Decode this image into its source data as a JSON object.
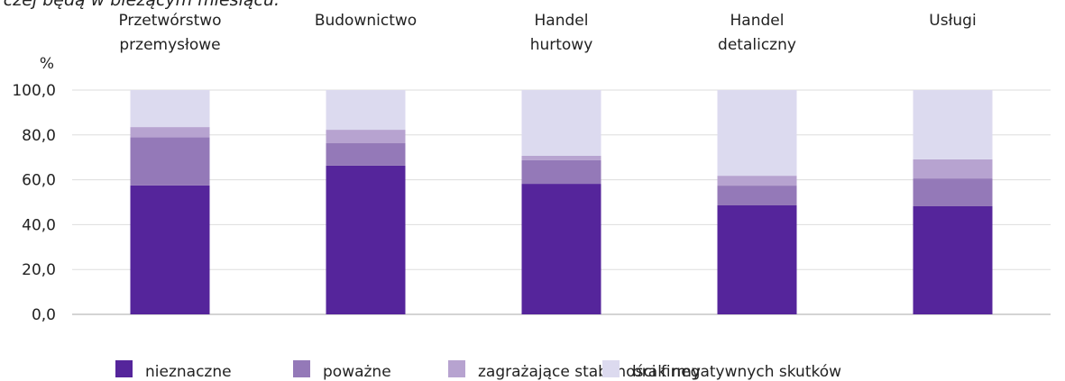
{
  "chart_data": {
    "type": "stacked_bar",
    "title": "rczej będą w bieżącym miesiącu.",
    "y_label": "%",
    "categories": [
      [
        "Przetwórstwo",
        "przemysłowe"
      ],
      [
        "Budownictwo"
      ],
      [
        "Handel",
        "hurtowy"
      ],
      [
        "Handel",
        "detaliczny"
      ],
      [
        "Usługi"
      ]
    ],
    "series": [
      {
        "name": "nieznaczne",
        "color": "#55259b",
        "values": [
          57.5,
          66.3,
          58.2,
          48.6,
          48.2
        ]
      },
      {
        "name": "poważne",
        "color": "#9479b8",
        "values": [
          21.5,
          10.0,
          10.5,
          8.8,
          12.4
        ]
      },
      {
        "name": "zagrażające stabilności firmy",
        "color": "#b7a3d0",
        "values": [
          4.5,
          6.0,
          2.0,
          4.4,
          8.5
        ]
      },
      {
        "name": "brak negatywnych skutków",
        "color": "#dcdaef",
        "values": [
          16.5,
          17.7,
          29.3,
          38.2,
          30.9
        ]
      }
    ],
    "ylim": [
      0,
      100
    ],
    "yticks": [
      {
        "value": 0,
        "label": "0,0"
      },
      {
        "value": 20,
        "label": "20,0"
      },
      {
        "value": 40,
        "label": "40,0"
      },
      {
        "value": 60,
        "label": "60,0"
      },
      {
        "value": 80,
        "label": "80,0"
      },
      {
        "value": 100,
        "label": "100,0"
      }
    ],
    "grid": true,
    "legend": "bottom"
  }
}
